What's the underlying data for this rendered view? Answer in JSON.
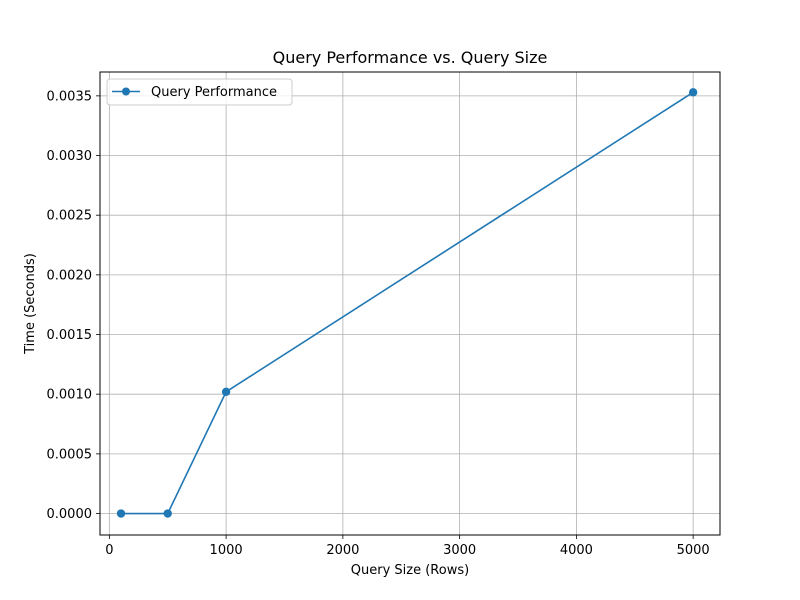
{
  "chart_data": {
    "type": "line",
    "title": "Query Performance vs. Query Size",
    "xlabel": "Query Size (Rows)",
    "ylabel": "Time (Seconds)",
    "xlim": [
      -80,
      5230
    ],
    "ylim": [
      -0.00018,
      0.0037
    ],
    "xticks": [
      0,
      1000,
      2000,
      3000,
      4000,
      5000
    ],
    "xtick_labels": [
      "0",
      "1000",
      "2000",
      "3000",
      "4000",
      "5000"
    ],
    "yticks": [
      0.0,
      0.0005,
      0.001,
      0.0015,
      0.002,
      0.0025,
      0.003,
      0.0035
    ],
    "ytick_labels": [
      "0.0000",
      "0.0005",
      "0.0010",
      "0.0015",
      "0.0020",
      "0.0025",
      "0.0030",
      "0.0035"
    ],
    "grid": true,
    "legend_position": "upper-left",
    "series": [
      {
        "name": "Query Performance",
        "color": "#1f77b4",
        "marker": "circle",
        "x": [
          100,
          500,
          1000,
          5000
        ],
        "y": [
          0.0,
          0.0,
          0.00102,
          0.00353
        ]
      }
    ]
  }
}
